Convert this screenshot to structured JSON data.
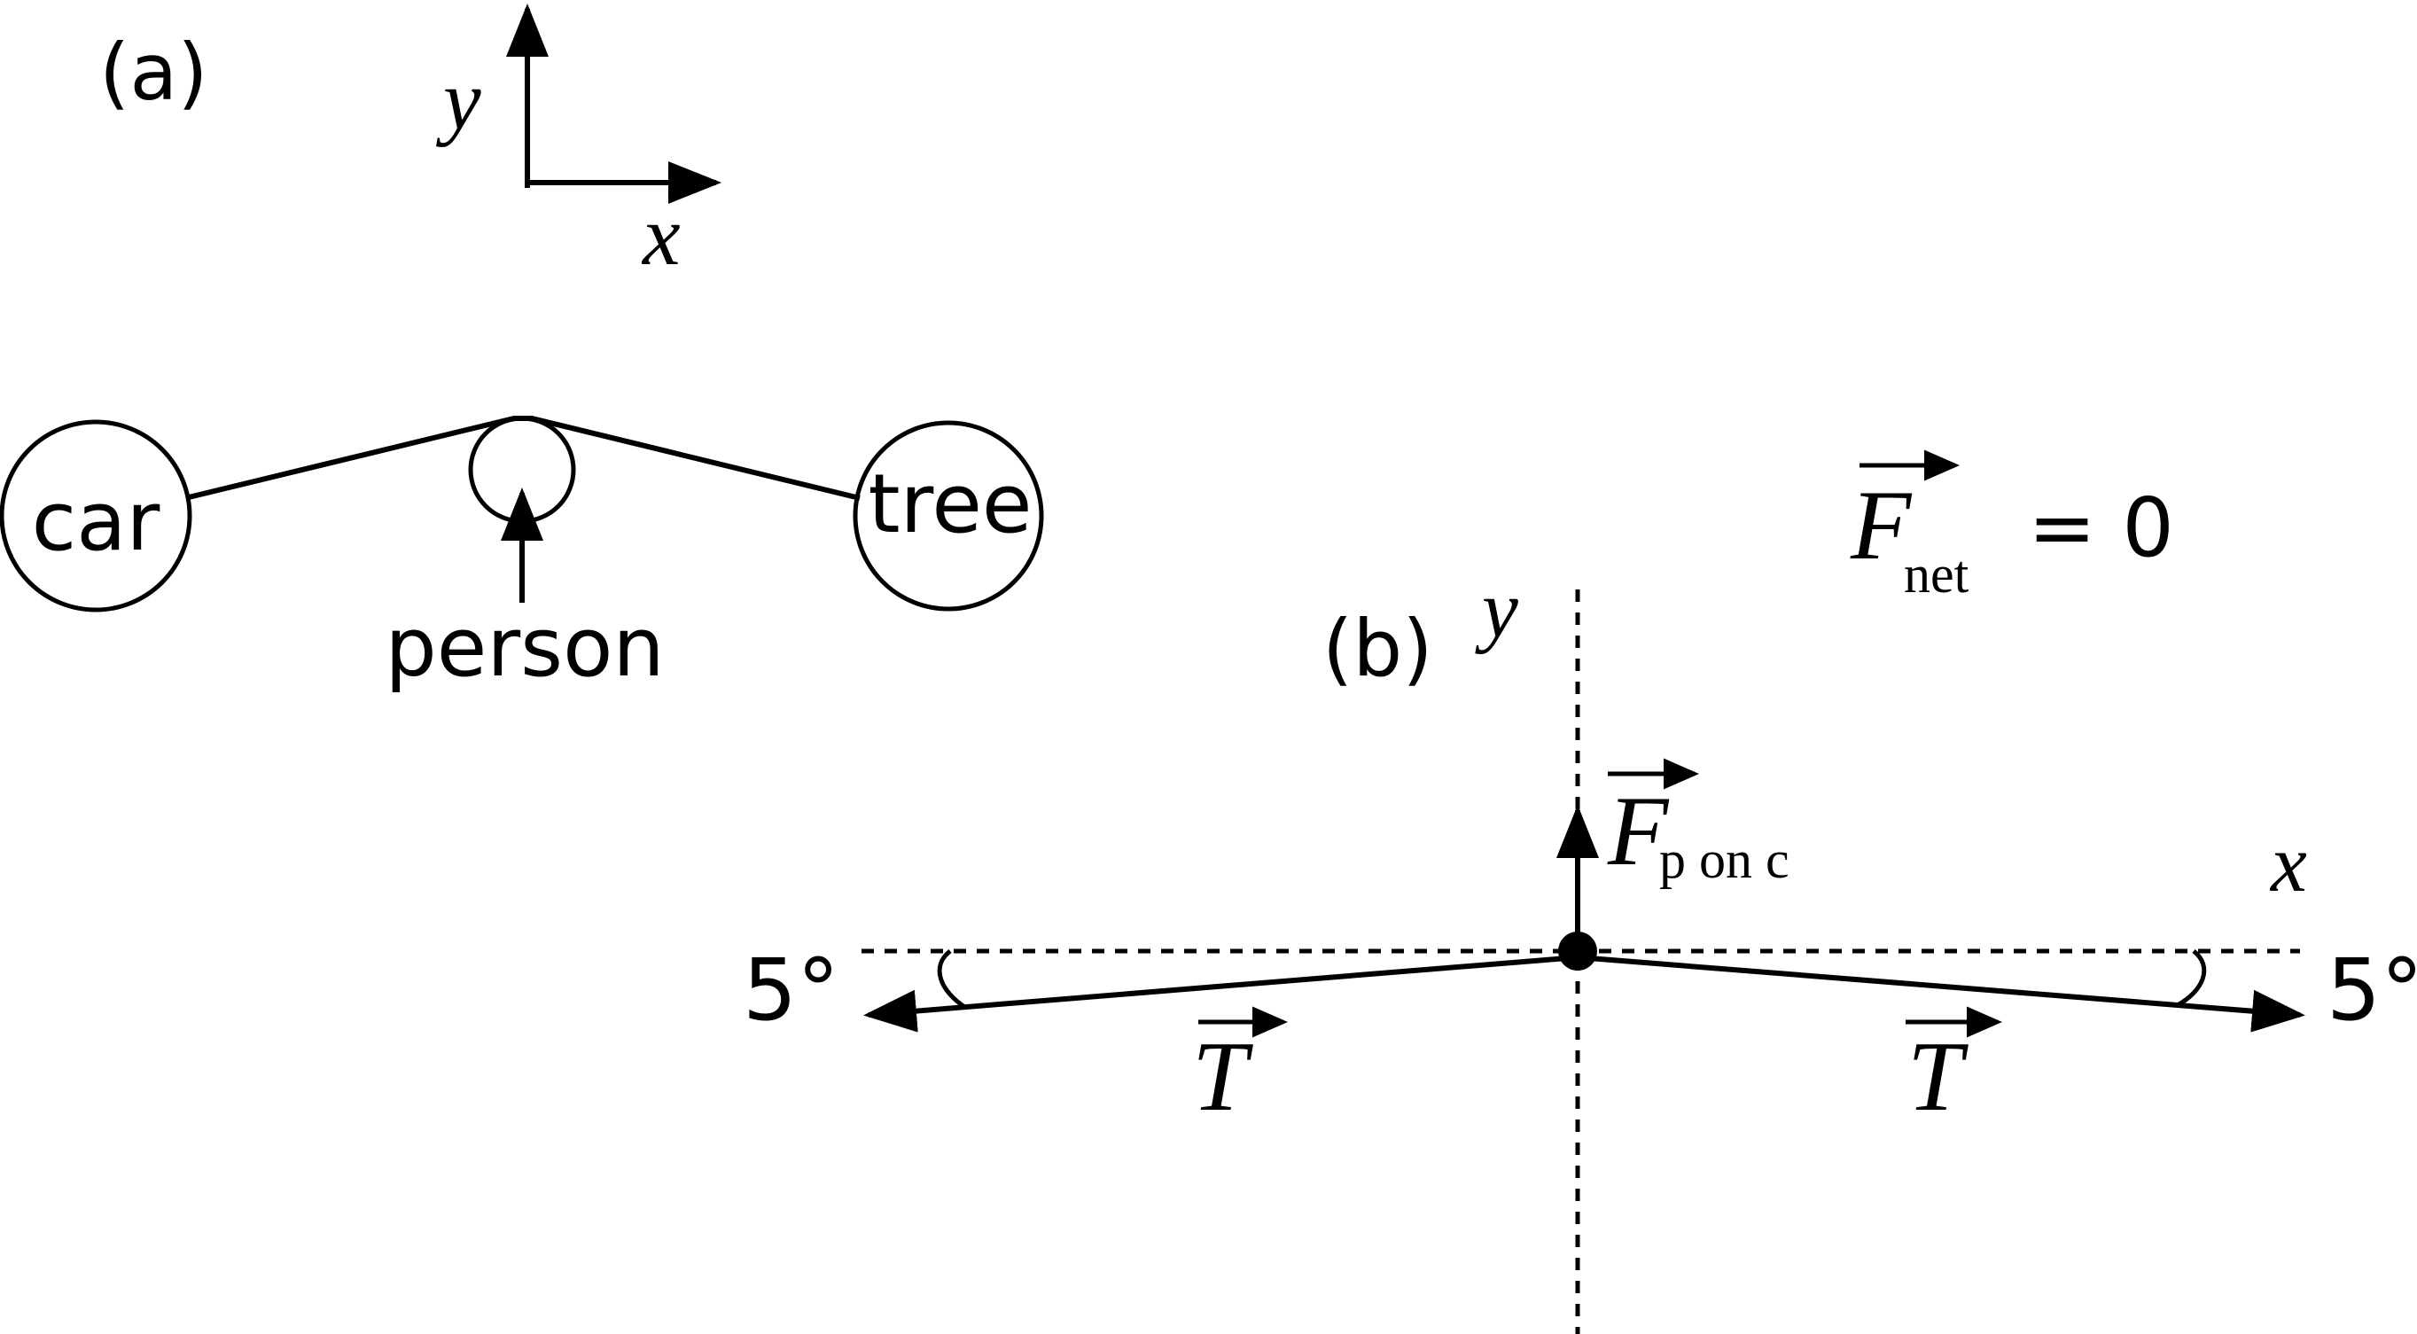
{
  "panel_a": {
    "label": "(a)",
    "axes": {
      "x": "x",
      "y": "y"
    },
    "objects": {
      "car": "car",
      "tree": "tree",
      "person": "person"
    }
  },
  "panel_b": {
    "label": "(b)",
    "axes": {
      "x": "x",
      "y": "y"
    },
    "angle_left": "5°",
    "angle_right": "5°",
    "tension_left": "T",
    "tension_right": "T",
    "force_symbol": "F",
    "force_subscript": "p on c"
  },
  "equation": {
    "symbol": "F",
    "subscript": "net",
    "rhs": "= 0"
  },
  "colors": {
    "ink": "#000000",
    "background": "#ffffff"
  }
}
